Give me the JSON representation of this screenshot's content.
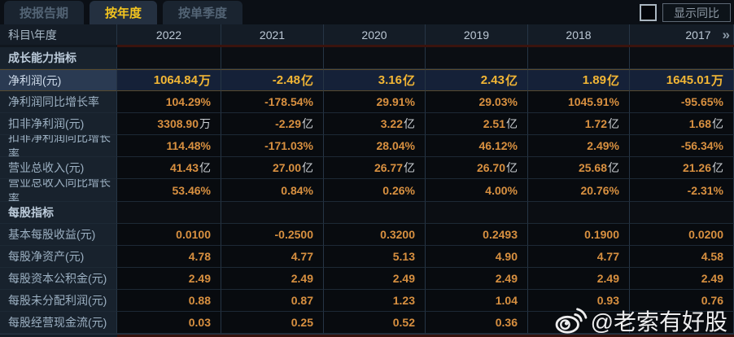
{
  "tabs": [
    {
      "label": "按报告期",
      "active": false
    },
    {
      "label": "按年度",
      "active": true
    },
    {
      "label": "按单季度",
      "active": false
    }
  ],
  "controls": {
    "show_yoy_label": "显示同比",
    "checkbox_checked": false
  },
  "accent_colors": {
    "active_tab_text": "#f3c41f",
    "value_orange": "#d89040",
    "highlight_gold": "#f2b635"
  },
  "table": {
    "corner_label": "科目\\年度",
    "years": [
      "2022",
      "2021",
      "2020",
      "2019",
      "2018",
      "2017"
    ],
    "more_icon": "»",
    "rows": [
      {
        "label": "成长能力指标",
        "type": "section",
        "values": [
          "",
          "",
          "",
          "",
          "",
          ""
        ]
      },
      {
        "label": "净利润(元)",
        "type": "highlight",
        "values": [
          "1064.84万",
          "-2.48亿",
          "3.16亿",
          "2.43亿",
          "1.89亿",
          "1645.01万"
        ]
      },
      {
        "label": "净利润同比增长率",
        "type": "data",
        "values": [
          "104.29%",
          "-178.54%",
          "29.91%",
          "29.03%",
          "1045.91%",
          "-95.65%"
        ]
      },
      {
        "label": "扣非净利润(元)",
        "type": "data",
        "values": [
          "3308.90万",
          "-2.29亿",
          "3.22亿",
          "2.51亿",
          "1.72亿",
          "1.68亿"
        ]
      },
      {
        "label": "扣非净利润同比增长率",
        "type": "data",
        "values": [
          "114.48%",
          "-171.03%",
          "28.04%",
          "46.12%",
          "2.49%",
          "-56.34%"
        ]
      },
      {
        "label": "营业总收入(元)",
        "type": "data",
        "values": [
          "41.43亿",
          "27.00亿",
          "26.77亿",
          "26.70亿",
          "25.68亿",
          "21.26亿"
        ]
      },
      {
        "label": "营业总收入同比增长率",
        "type": "data",
        "values": [
          "53.46%",
          "0.84%",
          "0.26%",
          "4.00%",
          "20.76%",
          "-2.31%"
        ]
      },
      {
        "label": "每股指标",
        "type": "section",
        "values": [
          "",
          "",
          "",
          "",
          "",
          ""
        ]
      },
      {
        "label": "基本每股收益(元)",
        "type": "data",
        "values": [
          "0.0100",
          "-0.2500",
          "0.3200",
          "0.2493",
          "0.1900",
          "0.0200"
        ]
      },
      {
        "label": "每股净资产(元)",
        "type": "data",
        "values": [
          "4.78",
          "4.77",
          "5.13",
          "4.90",
          "4.77",
          "4.58"
        ]
      },
      {
        "label": "每股资本公积金(元)",
        "type": "data",
        "values": [
          "2.49",
          "2.49",
          "2.49",
          "2.49",
          "2.49",
          "2.49"
        ]
      },
      {
        "label": "每股未分配利润(元)",
        "type": "data",
        "values": [
          "0.88",
          "0.87",
          "1.23",
          "1.04",
          "0.93",
          "0.76"
        ]
      },
      {
        "label": "每股经营现金流(元)",
        "type": "data",
        "values": [
          "0.03",
          "0.25",
          "0.52",
          "0.36",
          "",
          ""
        ]
      }
    ]
  },
  "watermark": {
    "text": "@老索有好股"
  }
}
